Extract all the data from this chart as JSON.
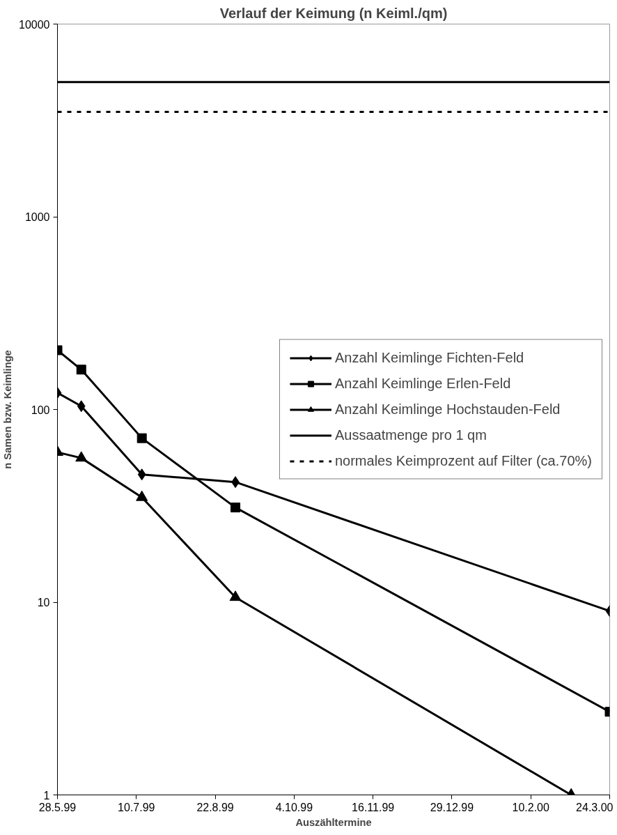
{
  "chart_data": {
    "type": "line",
    "title": "Verlauf der Keimung (n Keiml./qm)",
    "xlabel": "Auszähltermine",
    "ylabel": "n Samen bzw. Keimlinge",
    "log": "y",
    "ylim": [
      1,
      10000
    ],
    "yticks": [
      1,
      10,
      100,
      1000,
      10000
    ],
    "xlim": [
      "1999-05-28",
      "2000-03-24"
    ],
    "xticks": [
      {
        "value": "1999-05-28",
        "label": "28.5.99"
      },
      {
        "value": "1999-07-10",
        "label": "10.7.99"
      },
      {
        "value": "1999-08-22",
        "label": "22.8.99"
      },
      {
        "value": "1999-10-04",
        "label": "4.10.99"
      },
      {
        "value": "1999-11-16",
        "label": "16.11.99"
      },
      {
        "value": "1999-12-29",
        "label": "29.12.99"
      },
      {
        "value": "2000-02-10",
        "label": "10.2.00"
      },
      {
        "value": "2000-03-24",
        "label": "24.3.00"
      }
    ],
    "grid": false,
    "legend": "right",
    "series": [
      {
        "name": "Anzahl Keimlinge Fichten-Feld",
        "color": "#000000",
        "marker": "diamond",
        "line_style": "solid",
        "x": [
          "1999-05-28",
          "1999-06-10",
          "1999-07-13",
          "1999-09-02",
          "2000-03-24"
        ],
        "values": [
          122,
          104,
          46,
          42,
          9
        ]
      },
      {
        "name": "Anzahl Keimlinge Erlen-Feld",
        "color": "#000000",
        "marker": "square",
        "line_style": "solid",
        "x": [
          "1999-05-28",
          "1999-06-10",
          "1999-07-13",
          "1999-09-02",
          "2000-03-24"
        ],
        "values": [
          203,
          161,
          71,
          31,
          2.7
        ]
      },
      {
        "name": "Anzahl Keimlinge Hochstauden-Feld",
        "color": "#000000",
        "marker": "triangle",
        "line_style": "solid",
        "x": [
          "1999-05-28",
          "1999-06-10",
          "1999-07-13",
          "1999-09-02",
          "2000-03-03"
        ],
        "values": [
          60,
          56,
          35,
          10.6,
          1
        ]
      },
      {
        "name": "Aussaatmenge pro 1 qm",
        "color": "#000000",
        "marker": "none",
        "line_style": "solid",
        "x": [
          "1999-05-28",
          "2000-03-24"
        ],
        "values": [
          5000,
          5000
        ]
      },
      {
        "name": "normales Keimprozent auf Filter (ca.70%)",
        "color": "#000000",
        "marker": "none",
        "line_style": "dashed",
        "x": [
          "1999-05-28",
          "2000-03-24"
        ],
        "values": [
          3500,
          3500
        ]
      }
    ]
  }
}
